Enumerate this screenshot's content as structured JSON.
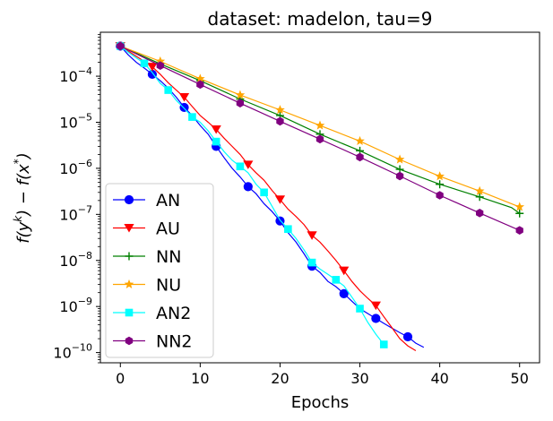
{
  "chart_data": {
    "type": "line",
    "title": "dataset: madelon, tau=9",
    "xlabel": "Epochs",
    "ylabel_parts": {
      "f": "f(y",
      "k": "k",
      "mid": ") − f(x",
      "star": "*",
      "end": ")"
    },
    "xlim": [
      -2.5,
      52.5
    ],
    "ylog": true,
    "ylim": [
      6e-11,
      0.0009
    ],
    "xticks": [
      0,
      10,
      20,
      30,
      40,
      50
    ],
    "xtick_labels": [
      "0",
      "10",
      "20",
      "30",
      "40",
      "50"
    ],
    "yticks_major": [
      1e-10,
      1e-09,
      1e-08,
      1e-07,
      1e-06,
      1e-05,
      0.0001
    ],
    "ytick_labels": [
      {
        "base": "10",
        "exp": "−10"
      },
      {
        "base": "10",
        "exp": "−9"
      },
      {
        "base": "10",
        "exp": "−8"
      },
      {
        "base": "10",
        "exp": "−7"
      },
      {
        "base": "10",
        "exp": "−6"
      },
      {
        "base": "10",
        "exp": "−5"
      },
      {
        "base": "10",
        "exp": "−4"
      }
    ],
    "legend_position": "lower-left",
    "series": [
      {
        "name": "AN",
        "color": "#0000ff",
        "marker": "circle",
        "x": [
          0,
          1,
          2,
          3,
          4,
          5,
          6,
          7,
          8,
          9,
          10,
          11,
          12,
          13,
          14,
          15,
          16,
          17,
          18,
          19,
          20,
          21,
          22,
          23,
          24,
          25,
          26,
          27,
          28,
          29,
          30,
          31,
          32,
          33,
          34,
          35,
          36,
          37,
          38
        ],
        "y": [
          0.00045,
          0.00029,
          0.0002,
          0.00015,
          0.00011,
          8e-05,
          5.5e-05,
          3.5e-05,
          2.1e-05,
          1.4e-05,
          8.5e-06,
          5.5e-06,
          3e-06,
          1.7e-06,
          1e-06,
          6.5e-07,
          4e-07,
          2.8e-07,
          1.7e-07,
          1.15e-07,
          7.2e-08,
          4e-08,
          2.5e-08,
          1.4e-08,
          7.5e-09,
          5.5e-09,
          3.5e-09,
          2.7e-09,
          1.9e-09,
          1.3e-09,
          9e-10,
          7e-10,
          5.5e-10,
          4.3e-10,
          3.4e-10,
          2.7e-10,
          2.2e-10,
          1.6e-10,
          1.3e-10
        ],
        "marker_indices": [
          0,
          4,
          8,
          12,
          16,
          20,
          24,
          28,
          32,
          36
        ]
      },
      {
        "name": "AU",
        "color": "#ff0000",
        "marker": "triangle_down",
        "x": [
          0,
          1,
          2,
          3,
          4,
          5,
          6,
          7,
          8,
          9,
          10,
          11,
          12,
          13,
          14,
          15,
          16,
          17,
          18,
          19,
          20,
          21,
          22,
          23,
          24,
          25,
          26,
          27,
          28,
          29,
          30,
          31,
          32,
          33,
          34,
          35,
          36,
          37
        ],
        "y": [
          0.00045,
          0.00035,
          0.00027,
          0.00021,
          0.00016,
          0.00011,
          7.2e-05,
          5e-05,
          3.5e-05,
          2.2e-05,
          1.4e-05,
          1e-05,
          7e-06,
          4.5e-06,
          3e-06,
          2e-06,
          1.2e-06,
          8e-07,
          5.5e-07,
          3.3e-07,
          2.1e-07,
          1.3e-07,
          9e-08,
          6e-08,
          3.5e-08,
          2.5e-08,
          1.6e-08,
          1e-08,
          6e-09,
          3.5e-09,
          2.2e-09,
          1.5e-09,
          1.05e-09,
          6e-10,
          3.5e-10,
          2e-10,
          1.4e-10,
          1.1e-10
        ],
        "marker_indices": [
          0,
          4,
          8,
          12,
          16,
          20,
          24,
          28,
          32
        ]
      },
      {
        "name": "NN",
        "color": "#008000",
        "marker": "plus",
        "x": [
          0,
          5,
          10,
          15,
          20,
          25,
          30,
          35,
          40,
          45,
          49,
          50
        ],
        "y": [
          0.00045,
          0.000185,
          8e-05,
          3.2e-05,
          1.4e-05,
          5.5e-06,
          2.4e-06,
          9.5e-07,
          4.5e-07,
          2.4e-07,
          1.4e-07,
          1.05e-07
        ],
        "marker_indices": [
          0,
          1,
          2,
          3,
          4,
          5,
          6,
          7,
          8,
          9,
          11
        ]
      },
      {
        "name": "NU",
        "color": "#ffa500",
        "marker": "star",
        "x": [
          0,
          5,
          10,
          15,
          20,
          25,
          30,
          35,
          40,
          45,
          50
        ],
        "y": [
          0.00045,
          0.00021,
          8.8e-05,
          3.9e-05,
          1.85e-05,
          8.5e-06,
          3.9e-06,
          1.55e-06,
          6.7e-07,
          3.2e-07,
          1.45e-07
        ],
        "marker_indices": [
          0,
          1,
          2,
          3,
          4,
          5,
          6,
          7,
          8,
          9,
          10
        ]
      },
      {
        "name": "AN2",
        "color": "#00ffff",
        "marker": "square",
        "x": [
          0,
          1,
          2,
          3,
          4,
          5,
          6,
          7,
          8,
          9,
          10,
          11,
          12,
          13,
          14,
          15,
          16,
          17,
          18,
          19,
          20,
          21,
          22,
          23,
          24,
          25,
          26,
          27,
          28,
          29,
          30,
          31,
          32,
          33
        ],
        "y": [
          0.00045,
          0.00033,
          0.00025,
          0.00019,
          0.00012,
          7e-05,
          5e-05,
          3e-05,
          2e-05,
          1.3e-05,
          1e-05,
          6.5e-06,
          3.8e-06,
          2.3e-06,
          1.5e-06,
          1.1e-06,
          8e-07,
          4.5e-07,
          3e-07,
          1.5e-07,
          7.5e-08,
          4.8e-08,
          3e-08,
          1.7e-08,
          9e-09,
          6.5e-09,
          5e-09,
          3.8e-09,
          2.8e-09,
          1.6e-09,
          9e-10,
          4.5e-10,
          2.5e-10,
          1.5e-10
        ],
        "marker_indices": [
          0,
          3,
          6,
          9,
          12,
          15,
          18,
          21,
          24,
          27,
          30,
          33
        ]
      },
      {
        "name": "NN2",
        "color": "#800080",
        "marker": "hexagon",
        "x": [
          0,
          5,
          10,
          15,
          20,
          25,
          30,
          35,
          40,
          45,
          50
        ],
        "y": [
          0.00045,
          0.00017,
          6.6e-05,
          2.6e-05,
          1.05e-05,
          4.3e-06,
          1.75e-06,
          6.8e-07,
          2.6e-07,
          1.07e-07,
          4.5e-08
        ],
        "marker_indices": [
          0,
          1,
          2,
          3,
          4,
          5,
          6,
          7,
          8,
          9,
          10
        ]
      }
    ]
  }
}
